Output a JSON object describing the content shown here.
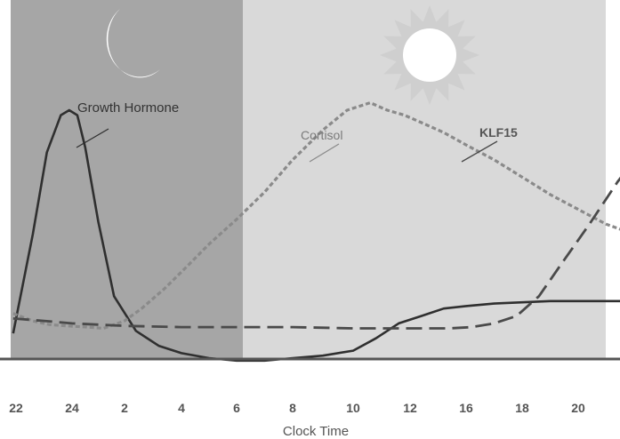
{
  "chart_data": {
    "type": "line",
    "title": "",
    "xlabel": "Clock Time",
    "ylabel": "",
    "x_ticks": [
      "22",
      "24",
      "2",
      "4",
      "6",
      "8",
      "10",
      "12",
      "16",
      "18",
      "20"
    ],
    "periods": [
      {
        "name": "night",
        "icon": "moon-icon",
        "from_tick": "22",
        "to_tick": "6",
        "color": "#a6a6a6"
      },
      {
        "name": "day",
        "icon": "sun-icon",
        "from_tick": "6",
        "to_tick": "20",
        "color": "#d9d9d9"
      }
    ],
    "ylim": [
      0,
      1
    ],
    "series": [
      {
        "name": "Growth Hormone",
        "style": "solid",
        "color": "#2f2f2f",
        "x": [
          -0.05,
          0.3,
          0.55,
          0.8,
          0.95,
          1.1,
          1.25,
          1.5,
          1.8,
          2.2,
          2.6,
          3.0,
          3.5,
          4.0,
          4.5,
          5.0,
          5.5,
          6.0,
          6.4,
          6.8,
          7.2,
          7.6,
          8.0,
          8.5,
          9.0,
          9.5,
          10.0,
          10.6,
          11.2,
          11.8,
          12.4,
          13.0,
          13.6,
          14.2,
          14.8,
          15.3,
          15.6,
          16.0,
          16.6,
          17.2,
          17.8,
          18.4,
          19.0,
          19.6,
          20.2,
          20.7
        ],
        "y": [
          0.1,
          0.5,
          0.83,
          0.98,
          1.0,
          0.98,
          0.85,
          0.55,
          0.25,
          0.11,
          0.05,
          0.02,
          0.0,
          -0.01,
          -0.01,
          0.0,
          0.01,
          0.03,
          0.08,
          0.14,
          0.17,
          0.2,
          0.21,
          0.22,
          0.225,
          0.23,
          0.23,
          0.23,
          0.23,
          0.23,
          0.23,
          0.225,
          0.22,
          0.215,
          0.2,
          0.19,
          0.12,
          0.085,
          0.07,
          0.065,
          0.06,
          0.06,
          0.06,
          0.06,
          0.065,
          0.07
        ]
      },
      {
        "name": "Cortisol",
        "style": "dotted",
        "color": "#8a8a8a",
        "x": [
          -0.05,
          0.3,
          0.6,
          0.9,
          1.3,
          1.6,
          2.0,
          2.3,
          2.7,
          3.1,
          3.5,
          4.0,
          4.5,
          5.0,
          5.5,
          5.9,
          6.3,
          6.6,
          6.9,
          7.2,
          7.6,
          8.0,
          8.5,
          9.0,
          9.5,
          10.0,
          10.5,
          11.0,
          11.5,
          12.0,
          12.5,
          13.0,
          13.5,
          14.0,
          14.5,
          15.0,
          15.5,
          16.0,
          16.5,
          17.0,
          17.5,
          18.0,
          18.5,
          19.0,
          19.5,
          20.0,
          20.4,
          20.7
        ],
        "y": [
          0.18,
          0.15,
          0.135,
          0.13,
          0.125,
          0.12,
          0.15,
          0.2,
          0.28,
          0.37,
          0.46,
          0.56,
          0.67,
          0.8,
          0.92,
          1.0,
          1.03,
          1.0,
          0.98,
          0.95,
          0.91,
          0.86,
          0.8,
          0.73,
          0.66,
          0.6,
          0.54,
          0.5,
          0.47,
          0.45,
          0.44,
          0.43,
          0.42,
          0.41,
          0.4,
          0.39,
          0.38,
          0.375,
          0.37,
          0.36,
          0.35,
          0.33,
          0.31,
          0.28,
          0.25,
          0.22,
          0.19,
          0.17
        ]
      },
      {
        "name": "KLF15",
        "style": "dashed",
        "color": "#4a4a4a",
        "x": [
          -0.05,
          0.5,
          1.0,
          1.5,
          2.0,
          3.0,
          4.0,
          5.0,
          6.0,
          6.7,
          7.2,
          7.7,
          8.1,
          8.5,
          8.9,
          9.3,
          9.7,
          10.2,
          10.7,
          11.2,
          11.6,
          12.0,
          12.4,
          12.8,
          13.2,
          13.6,
          14.0,
          14.5,
          15.0,
          15.5,
          16.0,
          16.5,
          17.0,
          17.5,
          18.0,
          18.5,
          19.0,
          19.5,
          20.0,
          20.4,
          20.7
        ],
        "y": [
          0.16,
          0.15,
          0.14,
          0.135,
          0.13,
          0.125,
          0.125,
          0.125,
          0.12,
          0.12,
          0.12,
          0.12,
          0.125,
          0.14,
          0.17,
          0.25,
          0.38,
          0.54,
          0.71,
          0.86,
          0.96,
          1.01,
          1.03,
          1.03,
          1.01,
          0.97,
          0.92,
          0.85,
          0.79,
          0.73,
          0.67,
          0.62,
          0.57,
          0.53,
          0.49,
          0.45,
          0.41,
          0.37,
          0.33,
          0.3,
          0.27
        ]
      }
    ],
    "annotations": [
      "Growth Hormone",
      "Cortisol",
      "KLF15"
    ]
  },
  "colors": {
    "night_band": "#a6a6a6",
    "day_band": "#d9d9d9",
    "baseline": "#555555",
    "sun": "#ffffff",
    "sun_rays": "#cfcfcf",
    "moon": "#ffffff"
  }
}
